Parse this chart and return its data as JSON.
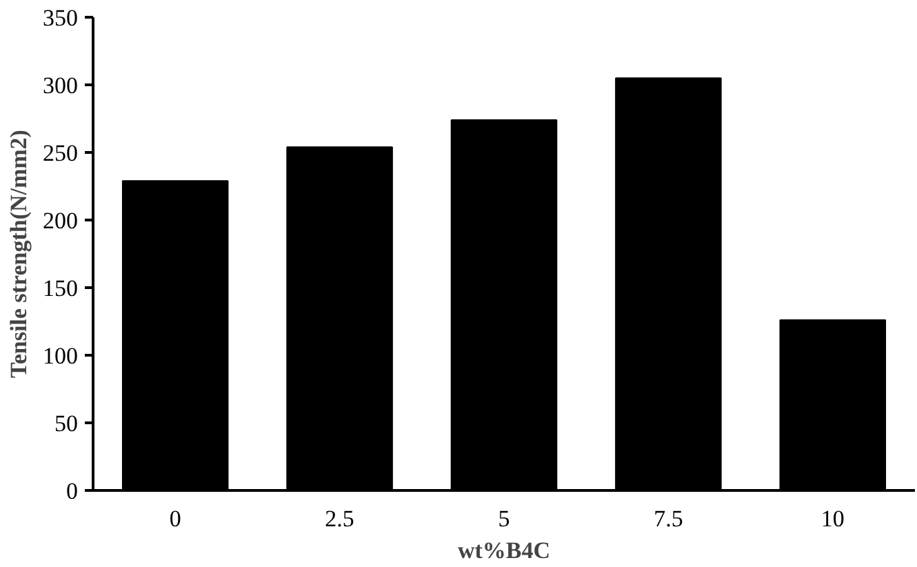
{
  "chart_data": {
    "type": "bar",
    "xlabel": "wt%B4C",
    "ylabel": "Tensile strength(N/mm2)",
    "categories": [
      "0",
      "2.5",
      "5",
      "7.5",
      "10"
    ],
    "values": [
      229,
      254,
      274,
      305,
      126
    ],
    "color": "#000000",
    "ylim": [
      0,
      350
    ],
    "yticks": [
      0,
      50,
      100,
      150,
      200,
      250,
      300,
      350
    ],
    "grid": false
  }
}
